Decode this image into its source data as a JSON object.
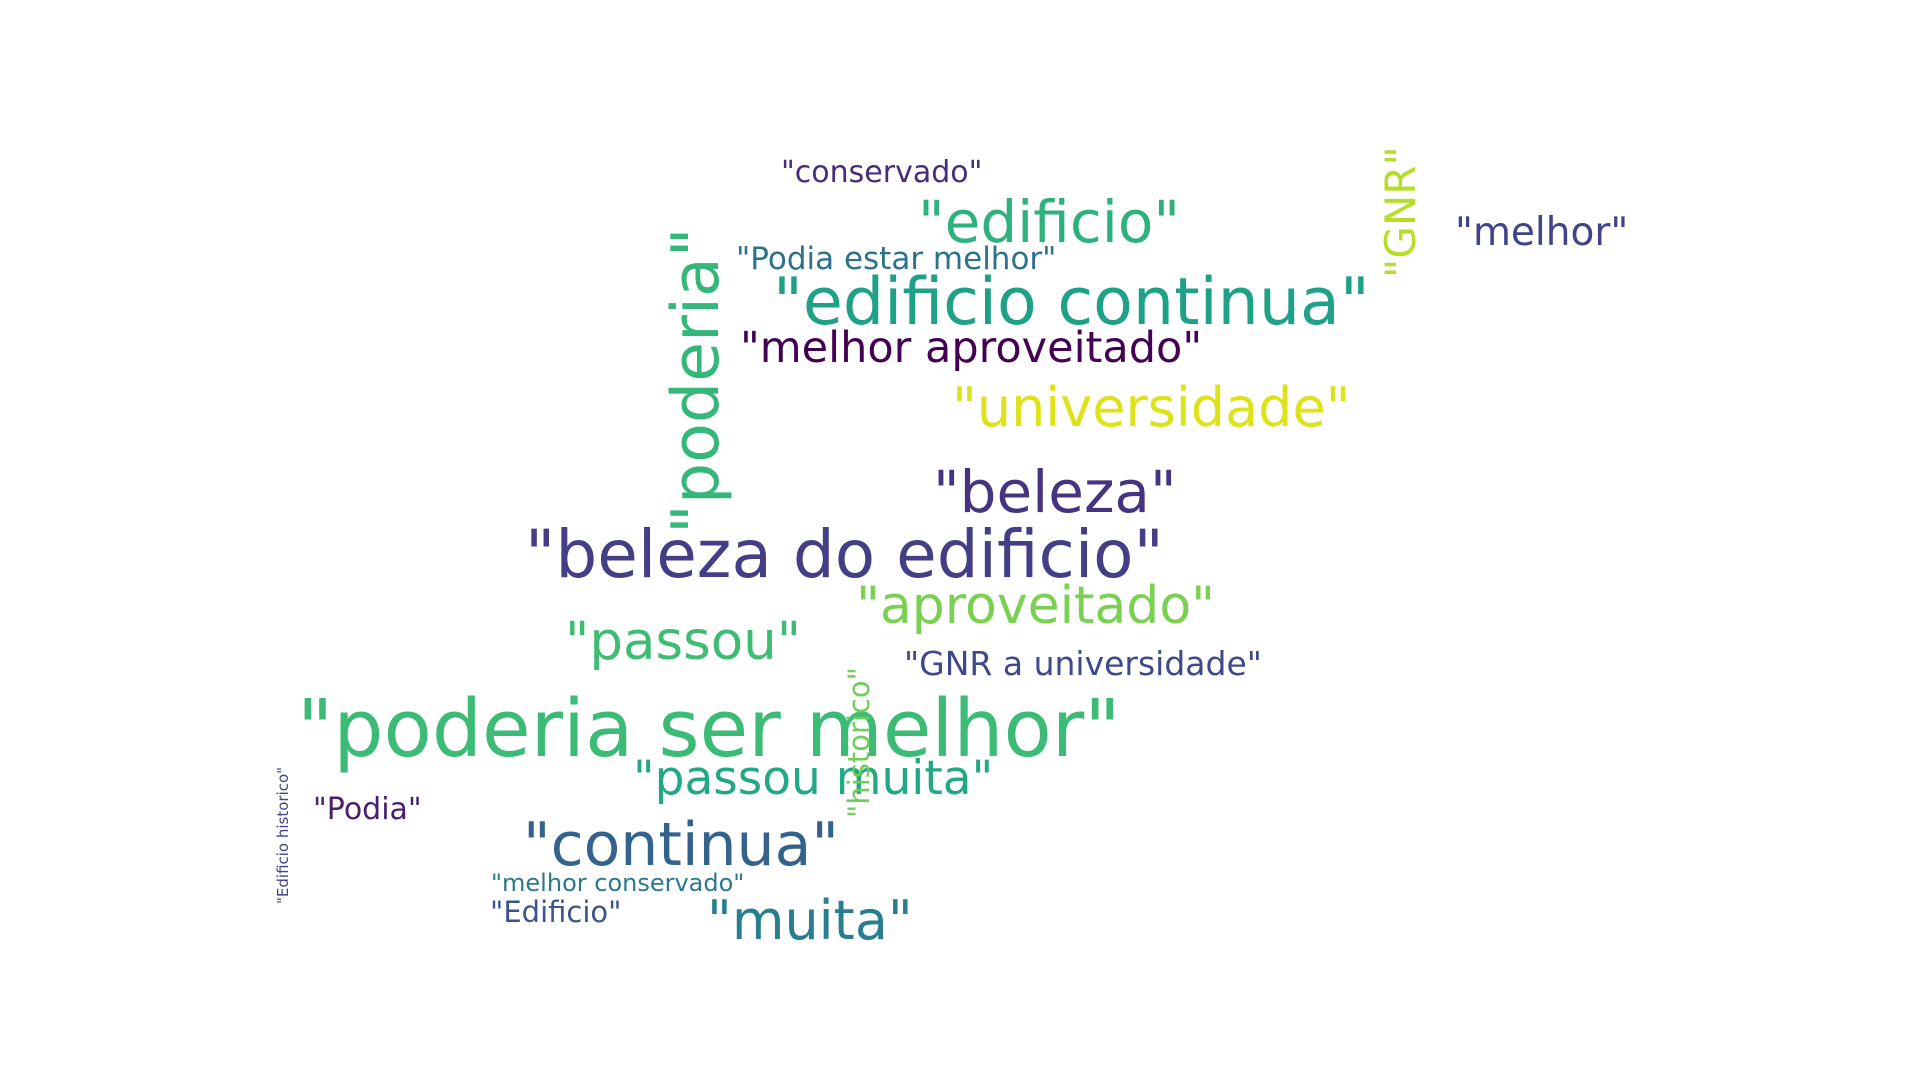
{
  "wordcloud": {
    "words": [
      {
        "text": "\"poderia ser melhor\"",
        "color": "#3bbb75",
        "orientation": "horizontal"
      },
      {
        "text": "\"beleza do edificio\"",
        "color": "#433e85",
        "orientation": "horizontal"
      },
      {
        "text": "\"edificio continua\"",
        "color": "#1fa188",
        "orientation": "horizontal"
      },
      {
        "text": "\"continua\"",
        "color": "#33638d",
        "orientation": "horizontal"
      },
      {
        "text": "\"beleza\"",
        "color": "#463480",
        "orientation": "horizontal"
      },
      {
        "text": "\"edificio\"",
        "color": "#2db27d",
        "orientation": "horizontal"
      },
      {
        "text": "\"universidade\"",
        "color": "#dde318",
        "orientation": "horizontal"
      },
      {
        "text": "\"muita\"",
        "color": "#287d8e",
        "orientation": "horizontal"
      },
      {
        "text": "\"passou\"",
        "color": "#3ebc74",
        "orientation": "horizontal"
      },
      {
        "text": "\"aproveitado\"",
        "color": "#7ad151",
        "orientation": "horizontal"
      },
      {
        "text": "\"passou muita\"",
        "color": "#22a884",
        "orientation": "horizontal"
      },
      {
        "text": "\"melhor aproveitado\"",
        "color": "#440154",
        "orientation": "horizontal"
      },
      {
        "text": "\"melhor\"",
        "color": "#414487",
        "orientation": "horizontal"
      },
      {
        "text": "\"GNR a universidade\"",
        "color": "#3e4989",
        "orientation": "horizontal"
      },
      {
        "text": "\"Podia estar melhor\"",
        "color": "#2c728e",
        "orientation": "horizontal"
      },
      {
        "text": "\"conservado\"",
        "color": "#472d7b",
        "orientation": "horizontal"
      },
      {
        "text": "\"Podia\"",
        "color": "#481f70",
        "orientation": "horizontal"
      },
      {
        "text": "\"Edificio\"",
        "color": "#3a548c",
        "orientation": "horizontal"
      },
      {
        "text": "\"melhor conservado\"",
        "color": "#2a788e",
        "orientation": "horizontal"
      },
      {
        "text": "\"poderia\"",
        "color": "#35b779",
        "orientation": "vertical"
      },
      {
        "text": "\"GNR\"",
        "color": "#b5de2b",
        "orientation": "vertical"
      },
      {
        "text": "\"historico\"",
        "color": "#6ece58",
        "orientation": "vertical"
      },
      {
        "text": "\"Edificio historico\"",
        "color": "#414487",
        "orientation": "vertical"
      }
    ]
  }
}
